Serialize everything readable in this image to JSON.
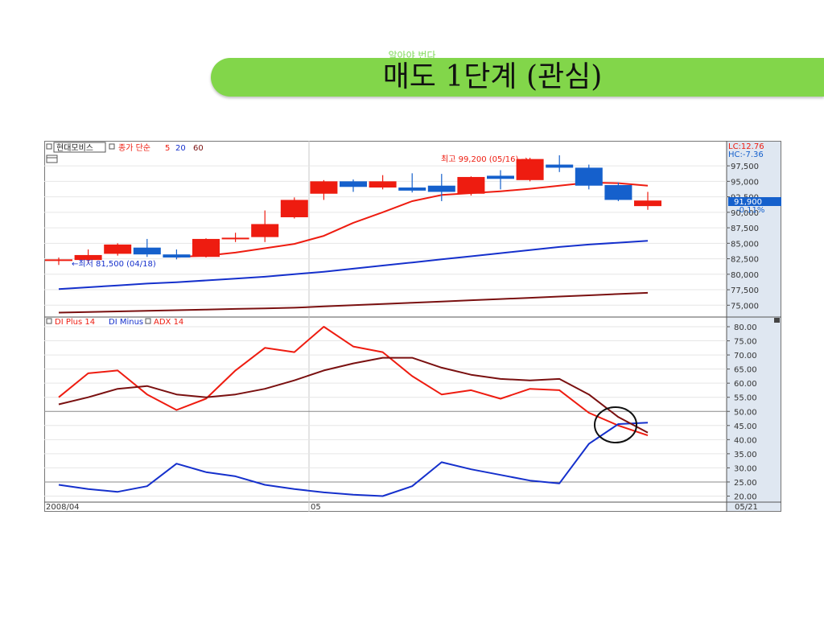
{
  "slide": {
    "subtitle": "알아야 번다",
    "title": "매도 1단계 (관심)"
  },
  "colors": {
    "banner": "#82d64a",
    "up_candle": "#ee1c10",
    "down_candle": "#1560cc",
    "ma5": "#ee1c10",
    "ma20": "#1530cc",
    "ma60": "#7a1010",
    "di_plus": "#ee1c10",
    "di_minus": "#1530cc",
    "adx": "#7a1010",
    "axis_panel": "#dfe7f1",
    "price_tag": "#1560cc"
  },
  "chart_header": {
    "stock_name": "현대모비스",
    "ma_label": "종가 단순",
    "ma_periods": [
      "5",
      "20",
      "60"
    ],
    "lc": "LC:12.76",
    "hc": "HC:-7.36",
    "indicator_labels": [
      "DI Plus 14",
      "DI Minus",
      "ADX 14"
    ]
  },
  "annotations": {
    "high": "최고 99,200 (05/16) →",
    "low": "←최저 81,500 (04/18)"
  },
  "price_tag": {
    "price": "91,900",
    "change": "-0.11%"
  },
  "x_labels": [
    "2008/04",
    "05"
  ],
  "last_date": "05/21",
  "price_ticks": [
    "97,500",
    "95,000",
    "92,500",
    "90,000",
    "87,500",
    "85,000",
    "82,500",
    "80,000",
    "77,500",
    "75,000"
  ],
  "ind_ticks": [
    "80.00",
    "75.00",
    "70.00",
    "65.00",
    "60.00",
    "55.00",
    "50.00",
    "45.00",
    "40.00",
    "35.00",
    "30.00",
    "25.00",
    "20.00"
  ],
  "chart_data": {
    "type": "candlestick",
    "title": "",
    "price_range": [
      74000,
      100500
    ],
    "indicator_range": [
      19,
      82
    ],
    "candles": [
      {
        "o": 82300,
        "h": 82700,
        "l": 81500,
        "c": 82400
      },
      {
        "o": 82300,
        "h": 84000,
        "l": 81800,
        "c": 83100
      },
      {
        "o": 83300,
        "h": 85000,
        "l": 83000,
        "c": 84800
      },
      {
        "o": 84300,
        "h": 85700,
        "l": 82800,
        "c": 83200
      },
      {
        "o": 83200,
        "h": 84000,
        "l": 82400,
        "c": 82700
      },
      {
        "o": 82800,
        "h": 85800,
        "l": 82700,
        "c": 85700
      },
      {
        "o": 85700,
        "h": 86700,
        "l": 85200,
        "c": 85900
      },
      {
        "o": 86000,
        "h": 90300,
        "l": 85200,
        "c": 88100
      },
      {
        "o": 89200,
        "h": 92400,
        "l": 89000,
        "c": 92000
      },
      {
        "o": 93000,
        "h": 95200,
        "l": 92000,
        "c": 95000
      },
      {
        "o": 95000,
        "h": 95300,
        "l": 93300,
        "c": 94100
      },
      {
        "o": 94000,
        "h": 96000,
        "l": 93700,
        "c": 95000
      },
      {
        "o": 94000,
        "h": 96300,
        "l": 93200,
        "c": 93500
      },
      {
        "o": 94300,
        "h": 96200,
        "l": 91800,
        "c": 93300
      },
      {
        "o": 93000,
        "h": 95800,
        "l": 92700,
        "c": 95700
      },
      {
        "o": 95900,
        "h": 96800,
        "l": 93700,
        "c": 95400
      },
      {
        "o": 95200,
        "h": 98800,
        "l": 95000,
        "c": 98600
      },
      {
        "o": 97700,
        "h": 99200,
        "l": 96500,
        "c": 97200
      },
      {
        "o": 97200,
        "h": 97700,
        "l": 93700,
        "c": 94300
      },
      {
        "o": 94400,
        "h": 94800,
        "l": 91800,
        "c": 92000
      },
      {
        "o": 91000,
        "h": 93300,
        "l": 90400,
        "c": 91900
      }
    ],
    "ma5": [
      null,
      null,
      null,
      null,
      82800,
      83000,
      83500,
      84200,
      84900,
      86200,
      88300,
      90000,
      91800,
      92800,
      93100,
      93400,
      93800,
      94300,
      94800,
      94700,
      94300
    ],
    "ma20": [
      77600,
      77900,
      78200,
      78500,
      78700,
      79000,
      79300,
      79600,
      80000,
      80400,
      80900,
      81400,
      81900,
      82400,
      82900,
      83400,
      83900,
      84400,
      84800,
      85100,
      85400
    ],
    "ma60": [
      73800,
      73900,
      74000,
      74100,
      74200,
      74300,
      74400,
      74500,
      74600,
      74800,
      75000,
      75200,
      75400,
      75600,
      75800,
      76000,
      76200,
      76400,
      76600,
      76800,
      77000
    ],
    "series": [
      {
        "name": "DI Plus 14",
        "values": [
          55,
          63.5,
          64.5,
          56,
          50.5,
          54.5,
          64.5,
          72.5,
          71,
          80,
          73,
          71,
          62.5,
          56,
          57.5,
          54.5,
          58,
          57.5,
          49.5,
          45,
          41.5
        ]
      },
      {
        "name": "DI Minus",
        "values": [
          24,
          22.5,
          21.5,
          23.5,
          31.5,
          28.5,
          27,
          24,
          22.5,
          21.3,
          20.5,
          20,
          23.5,
          32,
          29.5,
          27.5,
          25.5,
          24.5,
          38.5,
          45.5,
          46
        ]
      },
      {
        "name": "ADX 14",
        "values": [
          52.5,
          55,
          58,
          59,
          56,
          55,
          56,
          58,
          61,
          64.5,
          67,
          69,
          69,
          65.5,
          63,
          61.5,
          61,
          61.5,
          56,
          48,
          42.5
        ]
      }
    ]
  }
}
